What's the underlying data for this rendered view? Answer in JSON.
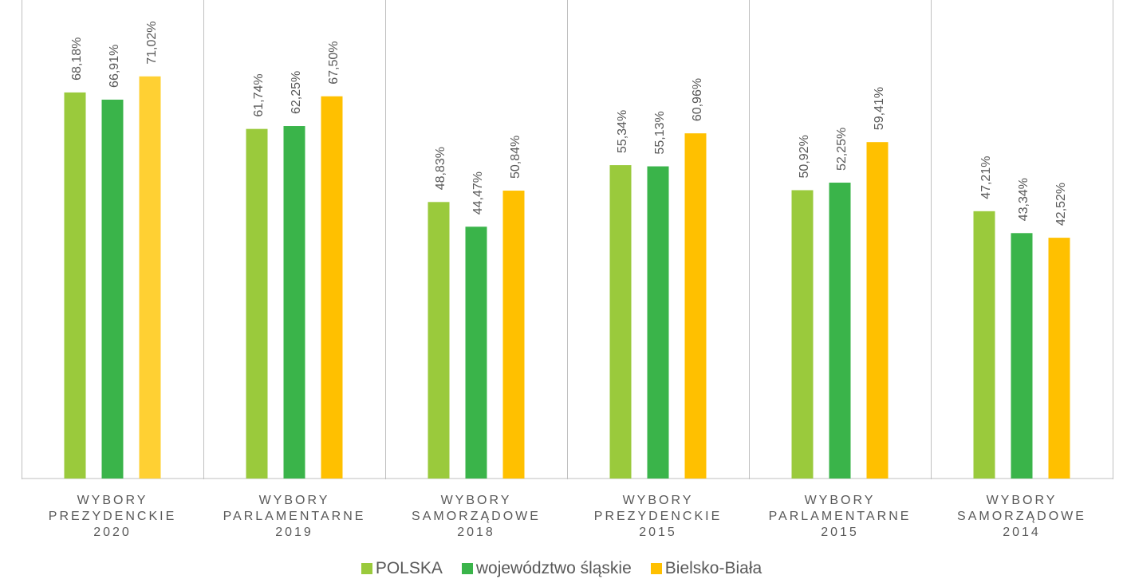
{
  "chart_data": {
    "type": "bar",
    "categories": [
      [
        "WYBORY",
        "PREZYDENCKIE",
        "2020"
      ],
      [
        "WYBORY",
        "PARLAMENTARNE",
        "2019"
      ],
      [
        "WYBORY",
        "SAMORZĄDOWE",
        "2018"
      ],
      [
        "WYBORY",
        "PREZYDENCKIE",
        "2015"
      ],
      [
        "WYBORY",
        "PARLAMENTARNE",
        "2015"
      ],
      [
        "WYBORY",
        "SAMORZĄDOWE",
        "2014"
      ]
    ],
    "series": [
      {
        "name": "POLSKA",
        "color": "#9ACA3C",
        "values": [
          68.18,
          61.74,
          48.83,
          55.34,
          50.92,
          47.21
        ],
        "labels": [
          "68,18%",
          "61,74%",
          "48,83%",
          "55,34%",
          "50,92%",
          "47,21%"
        ]
      },
      {
        "name": "województwo śląskie",
        "color": "#3AB44A",
        "values": [
          66.91,
          62.25,
          44.47,
          55.13,
          52.25,
          43.34
        ],
        "labels": [
          "66,91%",
          "62,25%",
          "44,47%",
          "55,13%",
          "52,25%",
          "43,34%"
        ]
      },
      {
        "name": "Bielsko-Biała",
        "color": "#FFC000",
        "values": [
          71.02,
          67.5,
          50.84,
          60.96,
          59.41,
          42.52
        ],
        "labels": [
          "71,02%",
          "67,50%",
          "50,84%",
          "60,96%",
          "59,41%",
          "42,52%"
        ]
      }
    ],
    "first_bar_color_override": "#FFD033",
    "ylim": [
      0,
      82
    ],
    "grid": "vertical separators",
    "legend_position": "bottom"
  }
}
